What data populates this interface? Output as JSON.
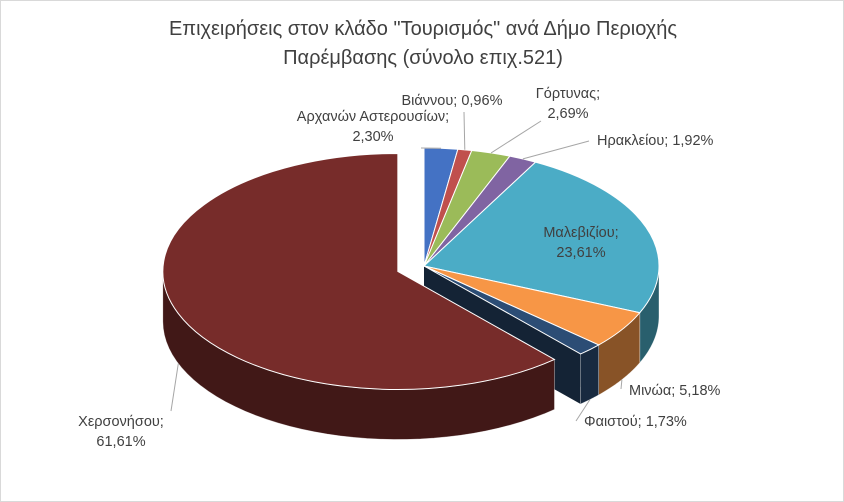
{
  "chart_data": {
    "type": "pie",
    "title_line1": "Επιχειρήσεις στον κλάδο \"Τουρισμός\" ανά Δήμο Περιοχής",
    "title_line2": "Παρέμβασης (σύνολο επιχ.521)",
    "slices": [
      {
        "name": "Αρχανών Αστερουσίων",
        "label": "Αρχανών Αστερουσίων; 2,30%",
        "value": 2.3,
        "color": "#4472c4"
      },
      {
        "name": "Βιάννου",
        "label": "Βιάννου; 0,96%",
        "value": 0.96,
        "color": "#c0504d"
      },
      {
        "name": "Γόρτυνας",
        "label": "Γόρτυνας; 2,69%",
        "value": 2.69,
        "color": "#9bbb59"
      },
      {
        "name": "Ηρακλείου",
        "label": "Ηρακλείου; 1,92%",
        "value": 1.92,
        "color": "#8064a2"
      },
      {
        "name": "Μαλεβιζίου",
        "label": "Μαλεβιζίου; 23,61%",
        "value": 23.61,
        "color": "#4bacc6"
      },
      {
        "name": "Μινώα",
        "label": "Μινώα; 5,18%",
        "value": 5.18,
        "color": "#f79646"
      },
      {
        "name": "Φαιστού",
        "label": "Φαιστού; 1,73%",
        "value": 1.73,
        "color": "#2c4d75"
      },
      {
        "name": "Χερσονήσου",
        "label": "Χερσονήσου; 61,61%",
        "value": 61.61,
        "color": "#772c2a"
      }
    ]
  }
}
